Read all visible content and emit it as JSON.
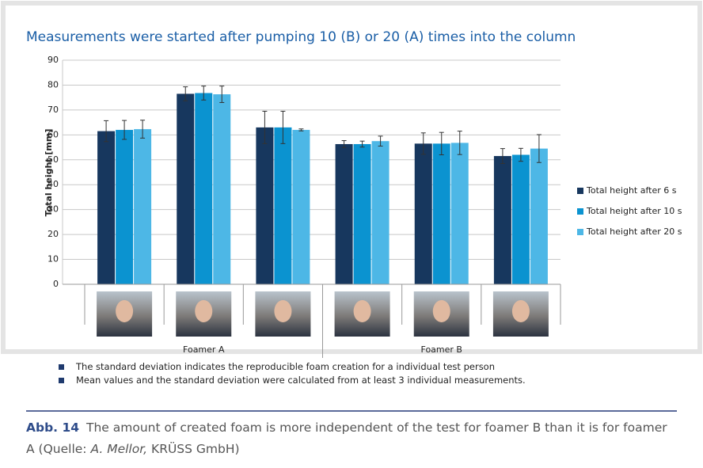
{
  "chart_data": {
    "type": "bar",
    "title": "Measurements were started after pumping 10 (B) or 20 (A) times into the column",
    "y_label": "Total height [mm]",
    "categories": [
      null,
      null,
      null,
      null,
      null,
      null
    ],
    "groups": [
      "Foamer A",
      "Foamer B"
    ],
    "series": [
      {
        "name": "Total height after 6 s",
        "color": "#17375e",
        "values": [
          61.5,
          76.5,
          63,
          56.3,
          56.5,
          51.5
        ],
        "errors": [
          4.2,
          2.8,
          6.5,
          1.4,
          4.3,
          3.0
        ]
      },
      {
        "name": "Total height after 10 s",
        "color": "#0b93d0",
        "values": [
          62,
          76.8,
          63,
          56.3,
          56.5,
          52
        ],
        "errors": [
          3.8,
          2.8,
          6.5,
          1.2,
          4.5,
          2.6
        ]
      },
      {
        "name": "Total height after 20 s",
        "color": "#4db7e6",
        "values": [
          62.3,
          76.3,
          62,
          57.5,
          56.8,
          54.5
        ],
        "errors": [
          3.6,
          3.3,
          0.4,
          2.0,
          4.7,
          5.6
        ]
      }
    ],
    "ylim": [
      0,
      90
    ],
    "yticks": [
      0,
      10,
      20,
      30,
      40,
      50,
      60,
      70,
      80,
      90
    ],
    "grid": true,
    "legend": "right"
  },
  "notes": [
    "The standard deviation indicates the reproducible foam creation for a individual test person",
    "Mean values and the standard deviation were calculated from at least 3 individual measurements."
  ],
  "caption": {
    "label": "Abb. 14",
    "text": "The amount of created foam is more independent of the test for foamer B than it is for foamer A (Quelle:",
    "author": "A. Mellor,",
    "source": "KRÜSS GmbH)"
  }
}
